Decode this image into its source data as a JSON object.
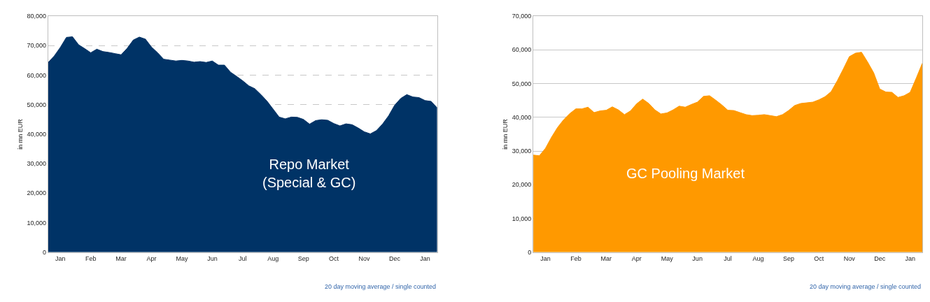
{
  "chart_data": [
    {
      "type": "area",
      "ylabel": "in mn EUR",
      "annotations": [
        "Repo Market\n(Special & GC)",
        "20 day moving average / single counted"
      ],
      "categories": [
        null,
        null,
        "Jan",
        null,
        null,
        null,
        null,
        "Feb",
        null,
        null,
        null,
        null,
        "Mar",
        null,
        null,
        null,
        null,
        "Apr",
        null,
        null,
        null,
        null,
        "May",
        null,
        null,
        null,
        null,
        "Jun",
        null,
        null,
        null,
        null,
        "Jul",
        null,
        null,
        null,
        null,
        "Aug",
        null,
        null,
        null,
        null,
        "Sep",
        null,
        null,
        null,
        null,
        "Oct",
        null,
        null,
        null,
        null,
        "Nov",
        null,
        null,
        null,
        null,
        "Dec",
        null,
        null,
        null,
        null,
        "Jan",
        null,
        null
      ],
      "series": [
        {
          "color": "#003366",
          "values": [
            64300,
            66500,
            69400,
            72800,
            73000,
            70300,
            69000,
            67600,
            68800,
            68000,
            67700,
            67300,
            66900,
            69100,
            71900,
            72900,
            72200,
            69500,
            67600,
            65400,
            65100,
            64800,
            65000,
            64800,
            64400,
            64600,
            64300,
            64800,
            63400,
            63400,
            61000,
            59600,
            58100,
            56400,
            55400,
            53400,
            51200,
            48500,
            45800,
            45200,
            45800,
            45700,
            45000,
            43400,
            44600,
            44900,
            44700,
            43600,
            42800,
            43500,
            43200,
            42100,
            40800,
            40100,
            41200,
            43400,
            46200,
            49800,
            52100,
            53400,
            52600,
            52400,
            51400,
            51100,
            48900
          ]
        }
      ],
      "ylim": [
        0,
        80000
      ],
      "yticks": [
        0,
        {
          "value": 10000,
          "label": "10,000"
        },
        {
          "value": 20000,
          "label": "20,000"
        },
        {
          "value": 30000,
          "label": "30,000"
        },
        {
          "value": 40000,
          "label": "40,000"
        },
        {
          "value": 50000,
          "label": "50,000"
        },
        {
          "value": 60000,
          "label": "60,000"
        },
        {
          "value": 70000,
          "label": "70,000"
        },
        {
          "value": 80000,
          "label": "80,000"
        }
      ],
      "grid": "y",
      "line_style": "dashed"
    },
    {
      "type": "area",
      "ylabel": "in mn EUR",
      "annotations": [
        "GC Pooling Market",
        "20 day moving average / single counted"
      ],
      "categories": [
        null,
        null,
        "Jan",
        null,
        null,
        null,
        null,
        "Feb",
        null,
        null,
        null,
        null,
        "Mar",
        null,
        null,
        null,
        null,
        "Apr",
        null,
        null,
        null,
        null,
        "May",
        null,
        null,
        null,
        null,
        "Jun",
        null,
        null,
        null,
        null,
        "Jul",
        null,
        null,
        null,
        null,
        "Aug",
        null,
        null,
        null,
        null,
        "Sep",
        null,
        null,
        null,
        null,
        "Oct",
        null,
        null,
        null,
        null,
        "Nov",
        null,
        null,
        null,
        null,
        "Dec",
        null,
        null,
        null,
        null,
        "Jan",
        null,
        null
      ],
      "series": [
        {
          "color": "#ff9900",
          "values": [
            28800,
            28600,
            30800,
            34100,
            37000,
            39300,
            41100,
            42500,
            42500,
            43000,
            41400,
            41900,
            42100,
            43100,
            42200,
            40800,
            41900,
            44000,
            45400,
            44100,
            42200,
            41000,
            41300,
            42200,
            43300,
            43000,
            43800,
            44500,
            46200,
            46400,
            45100,
            43700,
            42100,
            42000,
            41400,
            40800,
            40500,
            40600,
            40800,
            40500,
            40200,
            40800,
            42000,
            43500,
            44100,
            44300,
            44500,
            45200,
            46100,
            47600,
            50800,
            54300,
            58000,
            59000,
            59300,
            56400,
            53200,
            48400,
            47500,
            47400,
            45900,
            46400,
            47400,
            51600,
            56000
          ]
        }
      ],
      "ylim": [
        0,
        70000
      ],
      "yticks": [
        0,
        {
          "value": 10000,
          "label": "10,000"
        },
        {
          "value": 20000,
          "label": "20,000"
        },
        {
          "value": 30000,
          "label": "30,000"
        },
        {
          "value": 40000,
          "label": "40,000"
        },
        {
          "value": 50000,
          "label": "50,000"
        },
        {
          "value": 60000,
          "label": "60,000"
        },
        {
          "value": 70000,
          "label": "70,000"
        }
      ],
      "grid": "y",
      "line_style": "solid"
    }
  ]
}
